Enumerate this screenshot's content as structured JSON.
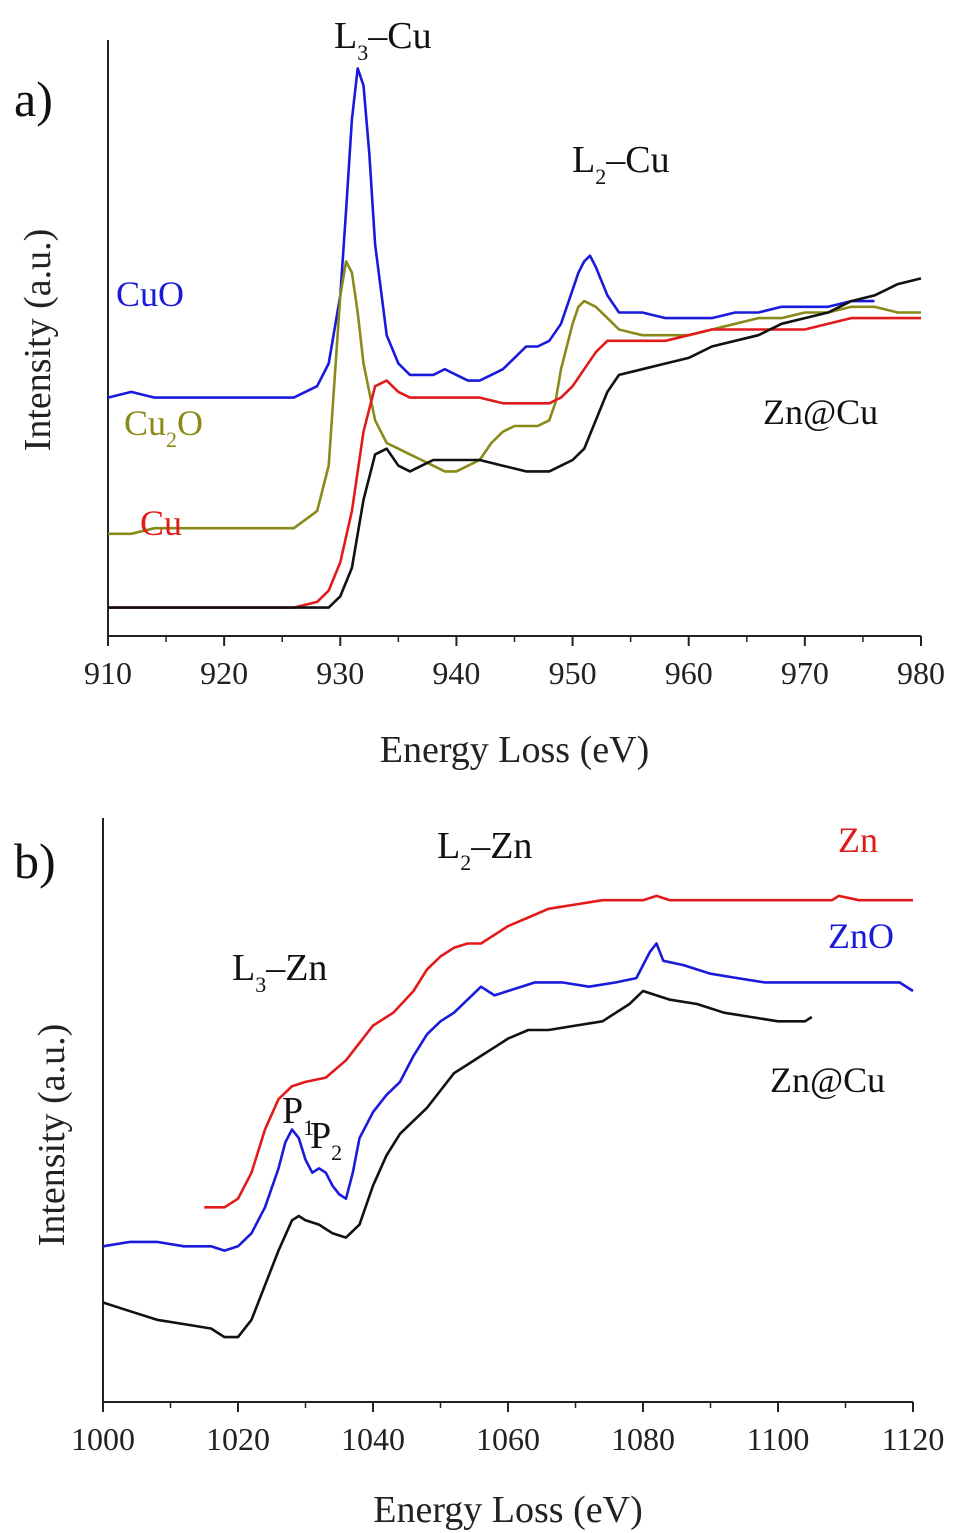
{
  "chart_data": [
    {
      "type": "line",
      "panel_label": "a)",
      "xlabel": "Energy Loss (eV)",
      "ylabel": "Intensity (a.u.)",
      "xlim": [
        910,
        980
      ],
      "x_ticks": [
        910,
        920,
        930,
        940,
        950,
        960,
        970,
        980
      ],
      "y_ticks_shown": false,
      "grid": false,
      "annotations": [
        {
          "main": "L",
          "sub": "3",
          "tail": "–Cu",
          "x": 931.5
        },
        {
          "main": "L",
          "sub": "2",
          "tail": "–Cu",
          "x": 951.5
        }
      ],
      "series": [
        {
          "name": "CuO",
          "label_main": "CuO",
          "label_sub": "",
          "label_tail": "",
          "color": "#1a1adc",
          "x": [
            910,
            912,
            914,
            916,
            918,
            920,
            922,
            924,
            926,
            928,
            929,
            930,
            930.5,
            931,
            931.5,
            932,
            932.5,
            933,
            934,
            935,
            936,
            937,
            938,
            939,
            940,
            941,
            942,
            943,
            944,
            945,
            946,
            947,
            948,
            949,
            950,
            950.5,
            951,
            951.5,
            952,
            953,
            954,
            955,
            956,
            958,
            960,
            962,
            964,
            966,
            968,
            970,
            972,
            974,
            976
          ],
          "y": [
            0.37,
            0.38,
            0.37,
            0.37,
            0.37,
            0.37,
            0.37,
            0.37,
            0.37,
            0.39,
            0.43,
            0.55,
            0.7,
            0.86,
            0.95,
            0.92,
            0.8,
            0.64,
            0.48,
            0.43,
            0.41,
            0.41,
            0.41,
            0.42,
            0.41,
            0.4,
            0.4,
            0.41,
            0.42,
            0.44,
            0.46,
            0.46,
            0.47,
            0.5,
            0.56,
            0.59,
            0.61,
            0.62,
            0.6,
            0.55,
            0.52,
            0.52,
            0.52,
            0.51,
            0.51,
            0.51,
            0.52,
            0.52,
            0.53,
            0.53,
            0.53,
            0.54,
            0.54
          ]
        },
        {
          "name": "Cu2O",
          "label_main": "Cu",
          "label_sub": "2",
          "label_tail": "O",
          "color": "#8a8a1a",
          "x": [
            910,
            912,
            914,
            916,
            918,
            920,
            922,
            924,
            926,
            928,
            929,
            929.5,
            930,
            930.5,
            931,
            931.5,
            932,
            933,
            934,
            935,
            936,
            937,
            938,
            939,
            940,
            941,
            942,
            943,
            944,
            945,
            946,
            947,
            948,
            948.5,
            949,
            950,
            950.5,
            951,
            952,
            953,
            954,
            956,
            958,
            960,
            962,
            964,
            966,
            968,
            970,
            972,
            974,
            976,
            978,
            980
          ],
          "y": [
            0.13,
            0.13,
            0.14,
            0.14,
            0.14,
            0.14,
            0.14,
            0.14,
            0.14,
            0.17,
            0.25,
            0.4,
            0.55,
            0.61,
            0.59,
            0.52,
            0.43,
            0.33,
            0.29,
            0.28,
            0.27,
            0.26,
            0.25,
            0.24,
            0.24,
            0.25,
            0.26,
            0.29,
            0.31,
            0.32,
            0.32,
            0.32,
            0.33,
            0.36,
            0.42,
            0.5,
            0.53,
            0.54,
            0.53,
            0.51,
            0.49,
            0.48,
            0.48,
            0.48,
            0.49,
            0.5,
            0.51,
            0.51,
            0.52,
            0.52,
            0.53,
            0.53,
            0.52,
            0.52
          ]
        },
        {
          "name": "Cu",
          "label_main": "Cu",
          "label_sub": "",
          "label_tail": "",
          "color": "#e11a1a",
          "x": [
            910,
            912,
            914,
            916,
            918,
            920,
            922,
            924,
            926,
            928,
            929,
            930,
            931,
            932,
            933,
            934,
            935,
            936,
            938,
            940,
            942,
            944,
            946,
            948,
            949,
            950,
            951,
            952,
            953,
            954,
            956,
            958,
            960,
            962,
            964,
            966,
            968,
            970,
            972,
            974,
            976,
            978,
            980
          ],
          "y": [
            0.0,
            0.0,
            0.0,
            0.0,
            0.0,
            0.0,
            0.0,
            0.0,
            0.0,
            0.01,
            0.03,
            0.08,
            0.17,
            0.31,
            0.39,
            0.4,
            0.38,
            0.37,
            0.37,
            0.37,
            0.37,
            0.36,
            0.36,
            0.36,
            0.37,
            0.39,
            0.42,
            0.45,
            0.47,
            0.47,
            0.47,
            0.47,
            0.48,
            0.49,
            0.49,
            0.49,
            0.49,
            0.49,
            0.5,
            0.51,
            0.51,
            0.51,
            0.51
          ]
        },
        {
          "name": "Zn@Cu",
          "label_main": "Zn@Cu",
          "label_sub": "",
          "label_tail": "",
          "color": "#111111",
          "x": [
            910,
            912,
            914,
            916,
            918,
            920,
            922,
            924,
            926,
            928,
            929,
            930,
            931,
            932,
            933,
            934,
            935,
            936,
            937,
            938,
            940,
            942,
            944,
            946,
            948,
            949,
            950,
            951,
            952,
            953,
            954,
            956,
            958,
            960,
            962,
            964,
            966,
            968,
            970,
            972,
            974,
            976,
            978,
            980
          ],
          "y": [
            0.0,
            0.0,
            0.0,
            0.0,
            0.0,
            0.0,
            0.0,
            0.0,
            0.0,
            0.0,
            0.0,
            0.02,
            0.07,
            0.19,
            0.27,
            0.28,
            0.25,
            0.24,
            0.25,
            0.26,
            0.26,
            0.26,
            0.25,
            0.24,
            0.24,
            0.25,
            0.26,
            0.28,
            0.33,
            0.38,
            0.41,
            0.42,
            0.43,
            0.44,
            0.46,
            0.47,
            0.48,
            0.5,
            0.51,
            0.52,
            0.54,
            0.55,
            0.57,
            0.58
          ]
        }
      ]
    },
    {
      "type": "line",
      "panel_label": "b)",
      "xlabel": "Energy Loss (eV)",
      "ylabel": "Intensity (a.u.)",
      "xlim": [
        1000,
        1120
      ],
      "x_ticks": [
        1000,
        1020,
        1040,
        1060,
        1080,
        1100,
        1120
      ],
      "y_ticks_shown": false,
      "grid": false,
      "annotations": [
        {
          "main": "L",
          "sub": "3",
          "tail": "–Zn",
          "x": 1030
        },
        {
          "main": "L",
          "sub": "2",
          "tail": "–Zn",
          "x": 1052
        },
        {
          "main": "P",
          "sub": "1",
          "tail": "",
          "x": 1028
        },
        {
          "main": "P",
          "sub": "2",
          "tail": "",
          "x": 1033
        }
      ],
      "series": [
        {
          "name": "Zn",
          "label_main": "Zn",
          "label_sub": "",
          "label_tail": "",
          "color": "#e11a1a",
          "x": [
            1015,
            1018,
            1020,
            1022,
            1024,
            1026,
            1028,
            1030,
            1033,
            1036,
            1038,
            1040,
            1043,
            1046,
            1048,
            1050,
            1052,
            1054,
            1056,
            1058,
            1060,
            1063,
            1066,
            1070,
            1074,
            1078,
            1080,
            1082,
            1084,
            1088,
            1092,
            1096,
            1098,
            1100,
            1104,
            1108,
            1109,
            1112,
            1116,
            1120
          ],
          "y": [
            0.0,
            0.0,
            0.02,
            0.08,
            0.18,
            0.25,
            0.28,
            0.29,
            0.3,
            0.34,
            0.38,
            0.42,
            0.45,
            0.5,
            0.55,
            0.58,
            0.6,
            0.61,
            0.61,
            0.63,
            0.65,
            0.67,
            0.69,
            0.7,
            0.71,
            0.71,
            0.71,
            0.72,
            0.71,
            0.71,
            0.71,
            0.71,
            0.71,
            0.71,
            0.71,
            0.71,
            0.72,
            0.71,
            0.71,
            0.71
          ]
        },
        {
          "name": "ZnO",
          "label_main": "ZnO",
          "label_sub": "",
          "label_tail": "",
          "color": "#1a1adc",
          "x": [
            1000,
            1004,
            1008,
            1012,
            1016,
            1018,
            1020,
            1022,
            1024,
            1026,
            1027,
            1028,
            1029,
            1030,
            1031,
            1032,
            1033,
            1034,
            1035,
            1036,
            1037,
            1038,
            1040,
            1042,
            1044,
            1046,
            1048,
            1050,
            1052,
            1054,
            1056,
            1058,
            1060,
            1064,
            1068,
            1072,
            1076,
            1079,
            1081,
            1082,
            1083,
            1086,
            1090,
            1094,
            1098,
            1102,
            1106,
            1110,
            1114,
            1118,
            1120
          ],
          "y": [
            -0.09,
            -0.08,
            -0.08,
            -0.09,
            -0.09,
            -0.1,
            -0.09,
            -0.06,
            0.0,
            0.09,
            0.15,
            0.18,
            0.16,
            0.11,
            0.08,
            0.09,
            0.08,
            0.05,
            0.03,
            0.02,
            0.08,
            0.16,
            0.22,
            0.26,
            0.29,
            0.35,
            0.4,
            0.43,
            0.45,
            0.48,
            0.51,
            0.49,
            0.5,
            0.52,
            0.52,
            0.51,
            0.52,
            0.53,
            0.59,
            0.61,
            0.57,
            0.56,
            0.54,
            0.53,
            0.52,
            0.52,
            0.52,
            0.52,
            0.52,
            0.52,
            0.5
          ]
        },
        {
          "name": "Zn@Cu",
          "label_main": "Zn@Cu",
          "label_sub": "",
          "label_tail": "",
          "color": "#111111",
          "x": [
            1000,
            1004,
            1008,
            1012,
            1016,
            1018,
            1020,
            1022,
            1024,
            1026,
            1028,
            1029,
            1030,
            1032,
            1034,
            1036,
            1038,
            1040,
            1042,
            1044,
            1046,
            1048,
            1050,
            1052,
            1054,
            1056,
            1058,
            1060,
            1063,
            1066,
            1070,
            1074,
            1078,
            1080,
            1082,
            1084,
            1088,
            1092,
            1096,
            1100,
            1104,
            1105
          ],
          "y": [
            -0.22,
            -0.24,
            -0.26,
            -0.27,
            -0.28,
            -0.3,
            -0.3,
            -0.26,
            -0.18,
            -0.1,
            -0.03,
            -0.02,
            -0.03,
            -0.04,
            -0.06,
            -0.07,
            -0.04,
            0.05,
            0.12,
            0.17,
            0.2,
            0.23,
            0.27,
            0.31,
            0.33,
            0.35,
            0.37,
            0.39,
            0.41,
            0.41,
            0.42,
            0.43,
            0.47,
            0.5,
            0.49,
            0.48,
            0.47,
            0.45,
            0.44,
            0.43,
            0.43,
            0.44
          ]
        }
      ]
    }
  ]
}
